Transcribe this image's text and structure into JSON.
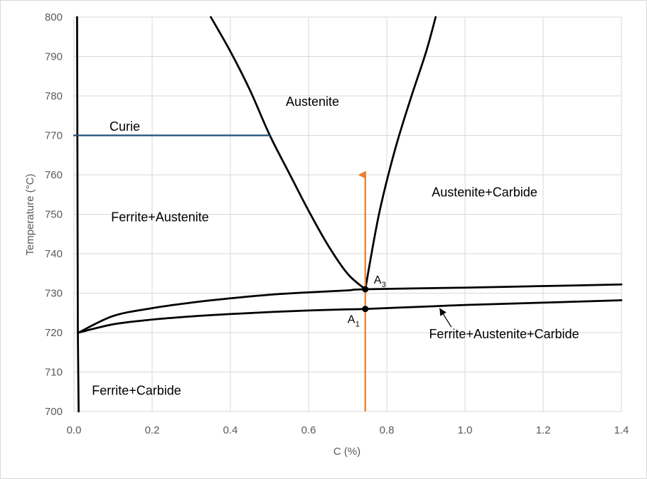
{
  "chart_data": {
    "type": "line",
    "title": "",
    "xlabel": "C (%)",
    "ylabel": "Temperature (°C)",
    "xlim": [
      0,
      1.4
    ],
    "ylim": [
      700,
      800
    ],
    "x_ticks": [
      "0.0",
      "0.2",
      "0.4",
      "0.6",
      "0.8",
      "1.0",
      "1.2",
      "1.4"
    ],
    "y_ticks": [
      "700",
      "710",
      "720",
      "730",
      "740",
      "750",
      "760",
      "770",
      "780",
      "790",
      "800"
    ],
    "grid": true,
    "legend": "none",
    "colors": {
      "phase": "#000000",
      "curie": "#1f4e79",
      "arrow": "#ed7d31",
      "grid": "#d9d9d9"
    },
    "series": [
      {
        "key": "ferrite_solvus_left",
        "color": "#000000",
        "points": [
          [
            0.012,
            700
          ],
          [
            0.01,
            720
          ],
          [
            0.009,
            760
          ],
          [
            0.008,
            800
          ]
        ]
      },
      {
        "key": "austenite_ferrite_boundary",
        "color": "#000000",
        "points": [
          [
            0.35,
            800
          ],
          [
            0.4,
            791.3
          ],
          [
            0.45,
            781.5
          ],
          [
            0.5,
            770.2
          ],
          [
            0.55,
            760.5
          ],
          [
            0.6,
            750.9
          ],
          [
            0.65,
            742.1
          ],
          [
            0.7,
            734.9
          ],
          [
            0.745,
            731
          ]
        ]
      },
      {
        "key": "acm_line",
        "color": "#000000",
        "points": [
          [
            0.745,
            731
          ],
          [
            0.78,
            750
          ],
          [
            0.82,
            766
          ],
          [
            0.86,
            779
          ],
          [
            0.9,
            791
          ],
          [
            0.925,
            800
          ]
        ]
      },
      {
        "key": "upper_eutectoid_line",
        "color": "#000000",
        "points": [
          [
            0.012,
            720
          ],
          [
            0.1,
            724.2
          ],
          [
            0.2,
            726.2
          ],
          [
            0.3,
            727.6
          ],
          [
            0.4,
            728.7
          ],
          [
            0.5,
            729.6
          ],
          [
            0.6,
            730.2
          ],
          [
            0.7,
            730.7
          ],
          [
            0.745,
            731
          ],
          [
            1.0,
            731.4
          ],
          [
            1.2,
            731.8
          ],
          [
            1.4,
            732.2
          ]
        ]
      },
      {
        "key": "lower_eutectoid_line",
        "color": "#000000",
        "points": [
          [
            0.012,
            720
          ],
          [
            0.1,
            722.1
          ],
          [
            0.2,
            723.3
          ],
          [
            0.3,
            724.1
          ],
          [
            0.4,
            724.7
          ],
          [
            0.5,
            725.2
          ],
          [
            0.6,
            725.6
          ],
          [
            0.7,
            725.9
          ],
          [
            0.745,
            726
          ],
          [
            0.9,
            726.6
          ],
          [
            1.0,
            727
          ],
          [
            1.2,
            727.6
          ],
          [
            1.4,
            728.2
          ]
        ]
      },
      {
        "key": "curie",
        "color": "#1f4e79",
        "points": [
          [
            0.0,
            770
          ],
          [
            0.5,
            770
          ]
        ]
      },
      {
        "key": "composition_arrow",
        "color": "#ed7d31",
        "points": [
          [
            0.745,
            700
          ],
          [
            0.745,
            760
          ]
        ]
      }
    ],
    "points": [
      {
        "key": "A3",
        "x": 0.745,
        "y": 731,
        "label": "A",
        "subscript": "3"
      },
      {
        "key": "A1",
        "x": 0.745,
        "y": 726,
        "label": "A",
        "subscript": "1"
      }
    ],
    "annotations": [
      {
        "key": "austenite",
        "text": "Austenite",
        "x": 0.61,
        "y": 777.5
      },
      {
        "key": "curie_label",
        "text": "Curie",
        "x": 0.13,
        "y": 771.2
      },
      {
        "key": "austenite_carbide",
        "text": "Austenite+Carbide",
        "x": 1.05,
        "y": 754.5
      },
      {
        "key": "ferrite_austenite",
        "text": "Ferrite+Austenite",
        "x": 0.22,
        "y": 748.2
      },
      {
        "key": "ferrite_austenite_carbide",
        "text": "Ferrite+Austenite+Carbide",
        "x": 1.1,
        "y": 718.6
      },
      {
        "key": "ferrite_carbide",
        "text": "Ferrite+Carbide",
        "x": 0.16,
        "y": 704.2
      }
    ],
    "leaders": [
      {
        "key": "fac_leader",
        "from": [
          0.965,
          721.4
        ],
        "to": [
          0.935,
          726.2
        ]
      }
    ]
  }
}
